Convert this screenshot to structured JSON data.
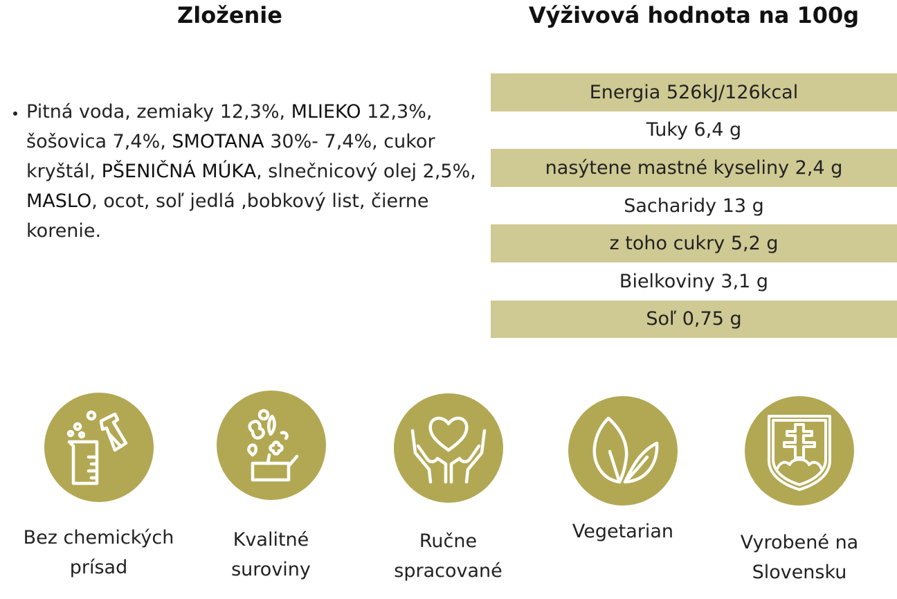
{
  "ingredients": {
    "title": "Zloženie",
    "items": [
      {
        "segments": [
          {
            "text": "Pitná voda, zemiaky 12,3%, ",
            "caps": false
          },
          {
            "text": "MLIEKO",
            "caps": true
          },
          {
            "text": " 12,3%, šošovica 7,4%, ",
            "caps": false
          },
          {
            "text": "SMOTANA",
            "caps": true
          },
          {
            "text": " 30%- 7,4%, cukor kryštál, ",
            "caps": false
          },
          {
            "text": "PŠENIČNÁ MÚKA",
            "caps": true
          },
          {
            "text": ", slnečnicový olej 2,5%, ",
            "caps": false
          },
          {
            "text": "MASLO",
            "caps": true
          },
          {
            "text": ", ocot, soľ jedlá ,bobkový list, čierne korenie.",
            "caps": false
          }
        ]
      }
    ]
  },
  "nutrition": {
    "title": "Výživová hodnota na 100g",
    "rows": [
      {
        "label": "Energia 526kJ/126kcal",
        "shaded": true
      },
      {
        "label": "Tuky 6,4 g",
        "shaded": false
      },
      {
        "label": "nasýtene mastné kyseliny 2,4 g",
        "shaded": true
      },
      {
        "label": "Sacharidy 13 g",
        "shaded": false
      },
      {
        "label": "z toho cukry 5,2 g",
        "shaded": true
      },
      {
        "label": "Bielkoviny 3,1 g",
        "shaded": false
      },
      {
        "label": "Soľ 0,75 g",
        "shaded": true
      }
    ]
  },
  "features": [
    {
      "icon": "chemistry-flask-icon",
      "label": "Bez chemických\nprísad"
    },
    {
      "icon": "vegetables-basket-icon",
      "label": "Kvalitné\nsuroviny"
    },
    {
      "icon": "heart-hands-icon",
      "label": "Ručne\nspracované"
    },
    {
      "icon": "leaves-icon",
      "label": "Vegetarian"
    },
    {
      "icon": "slovak-coat-of-arms-icon",
      "label": "Vyrobené na\nSlovensku"
    }
  ],
  "colors": {
    "row_shade": "#cfc993",
    "icon_circle": "#b2a853",
    "icon_line": "#ffffff"
  }
}
